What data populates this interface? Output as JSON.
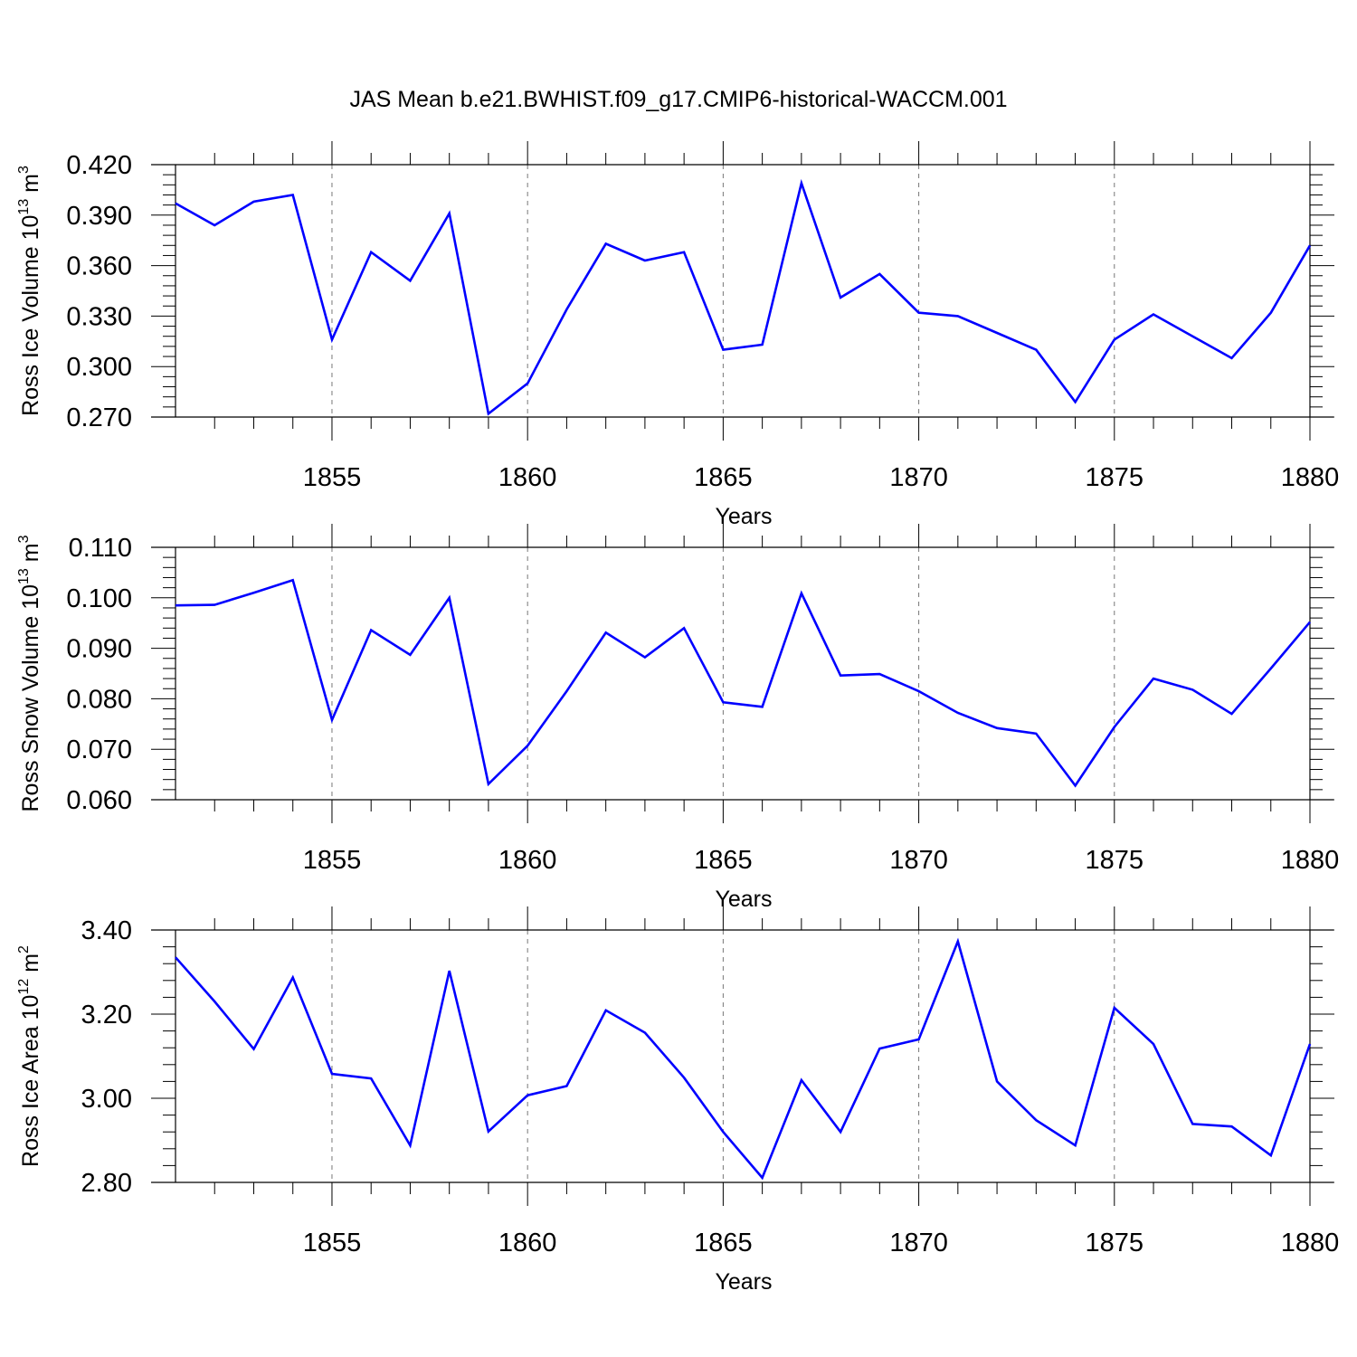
{
  "title": "JAS Mean b.e21.BWHIST.f09_g17.CMIP6-historical-WACCM.001",
  "chart_data": [
    {
      "type": "line",
      "ylabel_parts": [
        "Ross Ice Volume 10",
        "13",
        " m",
        "3"
      ],
      "xlabel": "Years",
      "x": [
        1851,
        1852,
        1853,
        1854,
        1855,
        1856,
        1857,
        1858,
        1859,
        1860,
        1861,
        1862,
        1863,
        1864,
        1865,
        1866,
        1867,
        1868,
        1869,
        1870,
        1871,
        1872,
        1873,
        1874,
        1875,
        1876,
        1877,
        1878,
        1879,
        1880
      ],
      "values": [
        0.397,
        0.384,
        0.398,
        0.402,
        0.316,
        0.368,
        0.351,
        0.391,
        0.272,
        0.29,
        0.334,
        0.373,
        0.363,
        0.368,
        0.31,
        0.313,
        0.409,
        0.341,
        0.355,
        0.332,
        0.33,
        0.32,
        0.31,
        0.279,
        0.316,
        0.331,
        0.318,
        0.305,
        0.332,
        0.372
      ],
      "xlim": [
        1851,
        1880
      ],
      "ylim": [
        0.27,
        0.42
      ],
      "yticks": [
        "0.420",
        "0.390",
        "0.360",
        "0.330",
        "0.300",
        "0.270"
      ],
      "xticks": [
        "1855",
        "1860",
        "1865",
        "1870",
        "1875",
        "1880"
      ],
      "grid": "vertical dashed at 5-year ticks",
      "color": "#0000ff"
    },
    {
      "type": "line",
      "ylabel_parts": [
        "Ross Snow Volume 10",
        "13",
        " m",
        "3"
      ],
      "xlabel": "Years",
      "x": [
        1851,
        1852,
        1853,
        1854,
        1855,
        1856,
        1857,
        1858,
        1859,
        1860,
        1861,
        1862,
        1863,
        1864,
        1865,
        1866,
        1867,
        1868,
        1869,
        1870,
        1871,
        1872,
        1873,
        1874,
        1875,
        1876,
        1877,
        1878,
        1879,
        1880
      ],
      "values": [
        0.0985,
        0.0986,
        0.101,
        0.1035,
        0.0758,
        0.0936,
        0.0887,
        0.1,
        0.0631,
        0.0707,
        0.0815,
        0.0931,
        0.0882,
        0.094,
        0.0793,
        0.0784,
        0.1009,
        0.0846,
        0.0849,
        0.0815,
        0.0772,
        0.0742,
        0.0731,
        0.0628,
        0.0744,
        0.084,
        0.0818,
        0.077,
        0.086,
        0.0952
      ],
      "xlim": [
        1851,
        1880
      ],
      "ylim": [
        0.06,
        0.11
      ],
      "yticks": [
        "0.110",
        "0.100",
        "0.090",
        "0.080",
        "0.070",
        "0.060"
      ],
      "xticks": [
        "1855",
        "1860",
        "1865",
        "1870",
        "1875",
        "1880"
      ],
      "grid": "vertical dashed at 5-year ticks",
      "color": "#0000ff"
    },
    {
      "type": "line",
      "ylabel_parts": [
        "Ross Ice Area 10",
        "12",
        " m",
        "2"
      ],
      "xlabel": "Years",
      "x": [
        1851,
        1852,
        1853,
        1854,
        1855,
        1856,
        1857,
        1858,
        1859,
        1860,
        1861,
        1862,
        1863,
        1864,
        1865,
        1866,
        1867,
        1868,
        1869,
        1870,
        1871,
        1872,
        1873,
        1874,
        1875,
        1876,
        1877,
        1878,
        1879,
        1880
      ],
      "values": [
        3.335,
        3.23,
        3.117,
        3.287,
        3.058,
        3.047,
        2.888,
        3.303,
        2.921,
        3.007,
        3.029,
        3.209,
        3.156,
        3.049,
        2.92,
        2.811,
        3.043,
        2.92,
        3.118,
        3.14,
        3.373,
        3.04,
        2.948,
        2.888,
        3.215,
        3.129,
        2.939,
        2.933,
        2.864,
        3.129
      ],
      "xlim": [
        1851,
        1880
      ],
      "ylim": [
        2.8,
        3.4
      ],
      "yticks": [
        "3.40",
        "3.20",
        "3.00",
        "2.80"
      ],
      "xticks": [
        "1855",
        "1860",
        "1865",
        "1870",
        "1875",
        "1880"
      ],
      "grid": "vertical dashed at 5-year ticks",
      "color": "#0000ff"
    }
  ]
}
